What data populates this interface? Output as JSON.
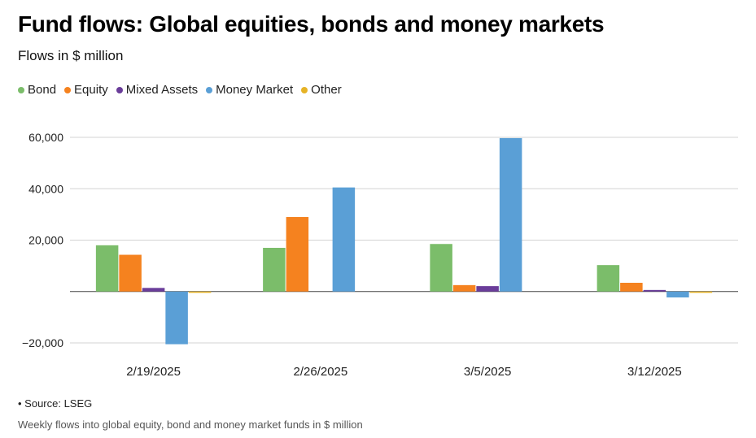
{
  "header": {
    "title": "Fund flows: Global equities, bonds and money markets",
    "subtitle": "Flows in $ million"
  },
  "footer": {
    "source": "• Source: LSEG",
    "caption": "Weekly flows into global equity, bond and money market funds in $ million"
  },
  "colors": {
    "Bond": "#7bbd6a",
    "Equity": "#f5821f",
    "Mixed Assets": "#6a3d9a",
    "Money Market": "#5a9fd6",
    "Other": "#e6b326"
  },
  "chart_data": {
    "type": "bar",
    "categories": [
      "2/19/2025",
      "2/26/2025",
      "3/5/2025",
      "3/12/2025"
    ],
    "series": [
      {
        "name": "Bond",
        "values": [
          18000,
          17000,
          18500,
          10300
        ]
      },
      {
        "name": "Equity",
        "values": [
          14300,
          29000,
          2500,
          3400
        ]
      },
      {
        "name": "Mixed Assets",
        "values": [
          1400,
          0,
          2100,
          600
        ]
      },
      {
        "name": "Money Market",
        "values": [
          -20500,
          40500,
          59700,
          -2300
        ]
      },
      {
        "name": "Other",
        "values": [
          -500,
          0,
          0,
          -500
        ]
      }
    ],
    "ylim": [
      -20000,
      60000
    ],
    "yticks": [
      -20000,
      20000,
      40000,
      60000
    ],
    "ytick_labels": [
      "−20,000",
      "20,000",
      "40,000",
      "60,000"
    ],
    "grid": true,
    "legend": "top-left"
  }
}
